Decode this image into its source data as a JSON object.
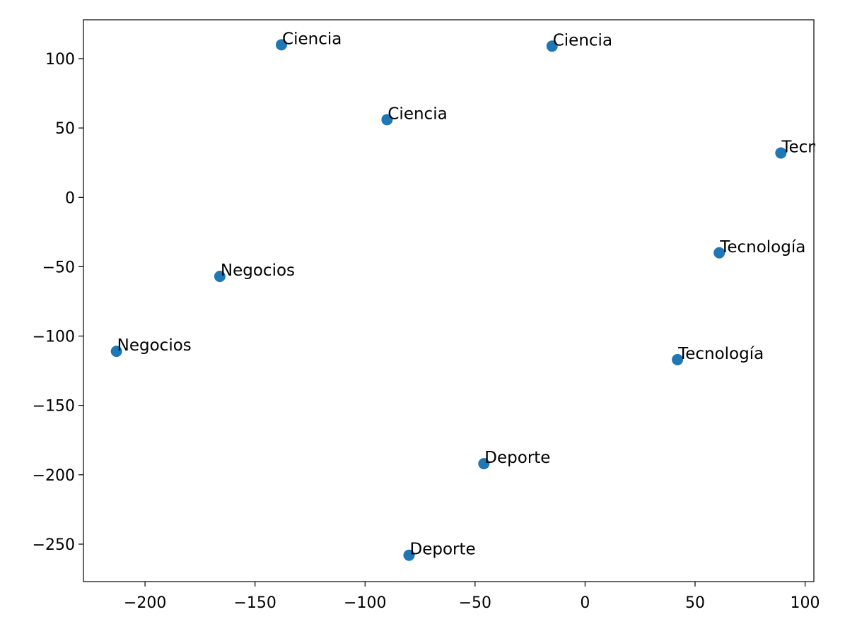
{
  "chart_data": {
    "type": "scatter",
    "title": "",
    "xlabel": "",
    "ylabel": "",
    "xlim": [
      -228,
      104
    ],
    "ylim": [
      -277,
      128
    ],
    "grid": false,
    "x_ticks": [
      -200,
      -150,
      -100,
      -50,
      0,
      50,
      100
    ],
    "x_tick_labels": [
      "−200",
      "−150",
      "−100",
      "−50",
      "0",
      "50",
      "100"
    ],
    "y_ticks": [
      100,
      50,
      0,
      -50,
      -100,
      -150,
      -200,
      -250
    ],
    "y_tick_labels": [
      "100",
      "50",
      "0",
      "−50",
      "−100",
      "−150",
      "−200",
      "−250"
    ],
    "marker_color": "#1f77b4",
    "points": [
      {
        "x": -138,
        "y": 110,
        "label": "Ciencia"
      },
      {
        "x": -15,
        "y": 109,
        "label": "Ciencia"
      },
      {
        "x": -90,
        "y": 56,
        "label": "Ciencia"
      },
      {
        "x": 89,
        "y": 32,
        "label": "Tecnología"
      },
      {
        "x": 61,
        "y": -40,
        "label": "Tecnología"
      },
      {
        "x": 42,
        "y": -117,
        "label": "Tecnología"
      },
      {
        "x": -166,
        "y": -57,
        "label": "Negocios"
      },
      {
        "x": -213,
        "y": -111,
        "label": "Negocios"
      },
      {
        "x": -46,
        "y": -192,
        "label": "Deporte"
      },
      {
        "x": -80,
        "y": -258,
        "label": "Deporte"
      }
    ]
  }
}
